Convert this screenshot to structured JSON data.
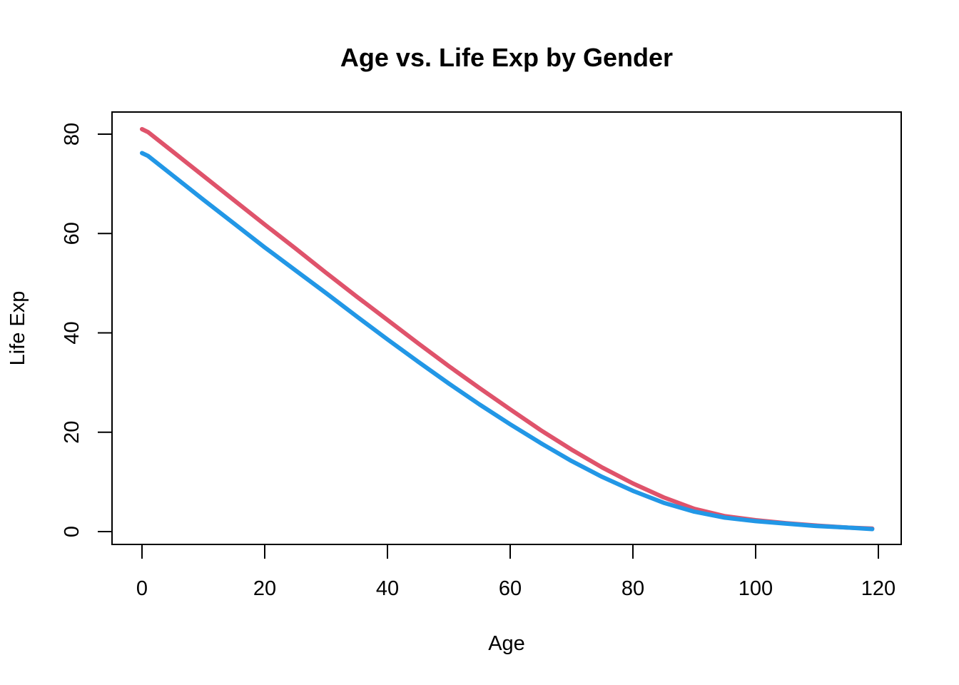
{
  "chart_data": {
    "type": "line",
    "title": "Age vs. Life Exp by Gender",
    "xlabel": "Age",
    "ylabel": "Life Exp",
    "xlim": [
      0,
      120
    ],
    "ylim": [
      0,
      80
    ],
    "xticks": [
      "0",
      "20",
      "40",
      "60",
      "80",
      "100",
      "120"
    ],
    "yticks": [
      "0",
      "20",
      "40",
      "60",
      "80"
    ],
    "grid": false,
    "legend": "none",
    "series": [
      {
        "color": "#DF536B",
        "x": [
          0,
          1,
          5,
          10,
          15,
          20,
          25,
          30,
          35,
          40,
          45,
          50,
          55,
          60,
          65,
          70,
          75,
          80,
          85,
          90,
          95,
          100,
          105,
          110,
          115,
          119
        ],
        "y": [
          81.0,
          80.4,
          76.5,
          71.6,
          66.7,
          61.8,
          57.0,
          52.1,
          47.3,
          42.6,
          37.9,
          33.3,
          28.9,
          24.6,
          20.4,
          16.5,
          12.9,
          9.7,
          6.9,
          4.6,
          3.1,
          2.3,
          1.7,
          1.2,
          0.8,
          0.6
        ]
      },
      {
        "color": "#2297E6",
        "x": [
          0,
          1,
          5,
          10,
          15,
          20,
          25,
          30,
          35,
          40,
          45,
          50,
          55,
          60,
          65,
          70,
          75,
          80,
          85,
          90,
          95,
          100,
          105,
          110,
          115,
          119
        ],
        "y": [
          76.2,
          75.6,
          71.7,
          66.8,
          62.0,
          57.2,
          52.6,
          48.0,
          43.3,
          38.7,
          34.2,
          29.8,
          25.6,
          21.6,
          17.8,
          14.2,
          11.0,
          8.2,
          5.8,
          4.0,
          2.8,
          2.1,
          1.6,
          1.1,
          0.8,
          0.5
        ]
      }
    ]
  }
}
